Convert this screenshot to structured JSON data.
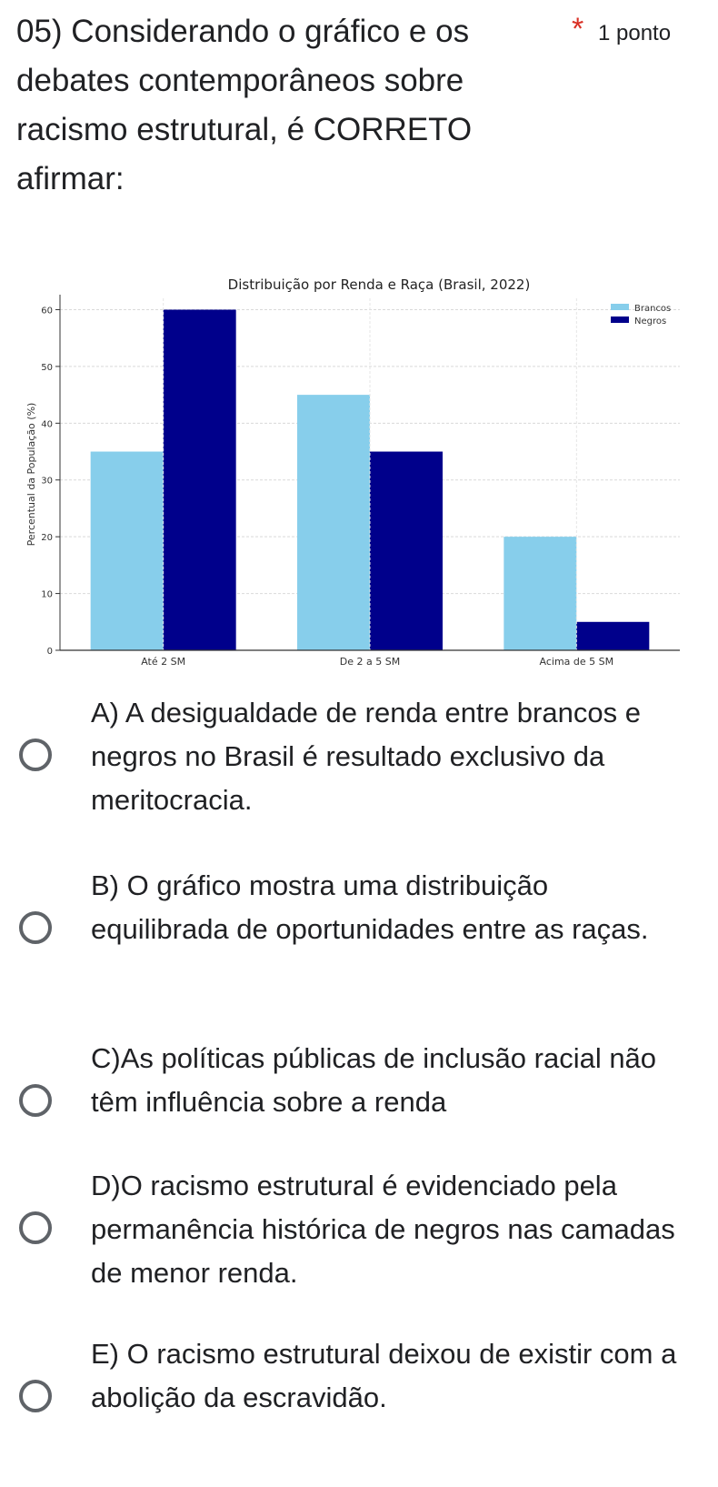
{
  "question": {
    "title": "05) Considerando o gráfico e os debates contemporâneos sobre racismo estrutural, é CORRETO afirmar:",
    "required_mark": "*",
    "points": "1 ponto"
  },
  "chart_data": {
    "type": "bar",
    "title": "Distribuição por Renda e Raça (Brasil, 2022)",
    "xlabel": "",
    "ylabel": "Percentual da População (%)",
    "categories": [
      "Até 2 SM",
      "De 2 a 5 SM",
      "Acima de 5 SM"
    ],
    "series": [
      {
        "name": "Brancos",
        "values": [
          35,
          45,
          20
        ],
        "color": "#87ceeb"
      },
      {
        "name": "Negros",
        "values": [
          60,
          35,
          5
        ],
        "color": "#00008b"
      }
    ],
    "ylim": [
      0,
      62
    ],
    "yticks": [
      "0",
      "10",
      "20",
      "30",
      "40",
      "50",
      "60"
    ],
    "grid": true,
    "legend": "top-right"
  },
  "options": [
    {
      "label": "A) A desigualdade de renda entre brancos e negros no Brasil é resultado exclusivo da meritocracia."
    },
    {
      "label": "B) O gráfico mostra uma distribuição equilibrada de oportunidades entre as raças."
    },
    {
      "label": "C)As políticas públicas de inclusão racial não têm influência sobre a renda"
    },
    {
      "label": "D)O racismo estrutural é evidenciado pela permanência histórica de negros nas camadas de menor renda."
    },
    {
      "label": "E) O racismo estrutural deixou de existir com a abolição da escravidão."
    }
  ]
}
